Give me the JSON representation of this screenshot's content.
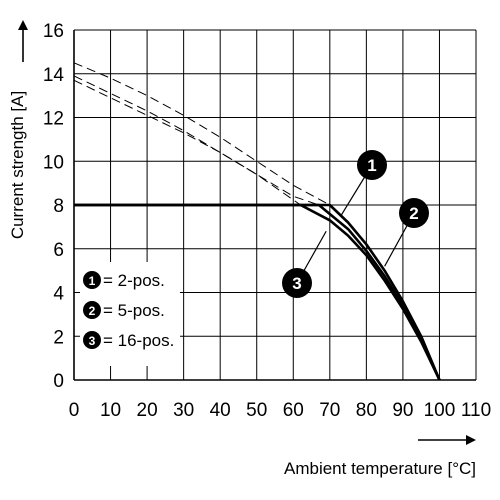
{
  "chart_data": {
    "type": "line",
    "xlabel": "Ambient temperature [°C]",
    "ylabel": "Current strength [A]",
    "xlim": [
      0,
      110
    ],
    "ylim": [
      0,
      16
    ],
    "x_ticks": [
      "0",
      "10",
      "20",
      "30",
      "40",
      "50",
      "60",
      "70",
      "80",
      "90",
      "100",
      "110"
    ],
    "y_ticks": [
      "0",
      "2",
      "4",
      "6",
      "8",
      "10",
      "12",
      "14",
      "16"
    ],
    "grid": true,
    "legend_position": "bottom-left",
    "legend": [
      {
        "marker": "1",
        "label": "= 2-pos."
      },
      {
        "marker": "2",
        "label": "= 5-pos."
      },
      {
        "marker": "3",
        "label": "= 16-pos."
      }
    ],
    "series": [
      {
        "marker": "1",
        "derating_curve": {
          "x": [
            0,
            70,
            75,
            80,
            85,
            90,
            95,
            100
          ],
          "y": [
            8,
            8,
            7.2,
            6.2,
            5.0,
            3.6,
            2.0,
            0
          ]
        },
        "unlimited_curve": {
          "x": [
            0,
            10,
            20,
            30,
            40,
            50,
            60,
            70
          ],
          "y": [
            14.5,
            13.8,
            13.0,
            12.1,
            11.1,
            10.0,
            8.9,
            8
          ]
        }
      },
      {
        "marker": "2",
        "derating_curve": {
          "x": [
            0,
            67,
            75,
            80,
            85,
            90,
            95,
            100
          ],
          "y": [
            8,
            8,
            6.9,
            5.9,
            4.75,
            3.4,
            1.85,
            0
          ]
        },
        "unlimited_curve": {
          "x": [
            0,
            10,
            20,
            30,
            40,
            50,
            60,
            67
          ],
          "y": [
            13.9,
            13.1,
            12.3,
            11.4,
            10.4,
            9.4,
            8.4,
            8
          ]
        }
      },
      {
        "marker": "3",
        "derating_curve": {
          "x": [
            0,
            62,
            70,
            75,
            80,
            85,
            90,
            95,
            100
          ],
          "y": [
            8,
            8,
            7.3,
            6.6,
            5.7,
            4.55,
            3.25,
            1.75,
            0
          ]
        },
        "unlimited_curve": {
          "x": [
            0,
            10,
            20,
            30,
            40,
            50,
            62
          ],
          "y": [
            13.7,
            12.9,
            12.1,
            11.3,
            10.4,
            9.4,
            8
          ]
        }
      }
    ],
    "annotations": [
      {
        "marker": "1",
        "at": {
          "x": 73,
          "y": 7.5
        }
      },
      {
        "marker": "2",
        "at": {
          "x": 85,
          "y": 5.2
        }
      },
      {
        "marker": "3",
        "at": {
          "x": 69,
          "y": 6.8
        }
      }
    ]
  }
}
